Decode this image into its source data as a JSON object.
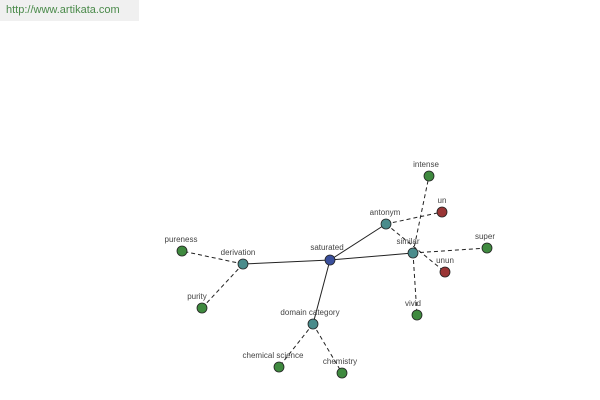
{
  "source_link": "http://www.artikata.com",
  "colors": {
    "center": "#3a4f9c",
    "relation": "#4a8c8c",
    "word": "#3f8a3f",
    "word_red": "#9a3535",
    "edge": "#222222"
  },
  "graph": {
    "center": {
      "id": "saturated",
      "label": "saturated"
    },
    "relations": [
      {
        "id": "antonym",
        "label": "antonym"
      },
      {
        "id": "similar",
        "label": "similar"
      },
      {
        "id": "derivation",
        "label": "derivation"
      },
      {
        "id": "domain_category",
        "label": "domain category"
      }
    ],
    "words": [
      {
        "id": "intense",
        "label": "intense",
        "relation": "similar",
        "tone": "green"
      },
      {
        "id": "un",
        "label": "un",
        "relation": "antonym",
        "tone": "red"
      },
      {
        "id": "super",
        "label": "super",
        "relation": "similar",
        "tone": "green"
      },
      {
        "id": "unun",
        "label": "unun",
        "relation": "antonym",
        "tone": "red"
      },
      {
        "id": "vivid",
        "label": "vivid",
        "relation": "similar",
        "tone": "green"
      },
      {
        "id": "pureness",
        "label": "pureness",
        "relation": "derivation",
        "tone": "green"
      },
      {
        "id": "purity",
        "label": "purity",
        "relation": "derivation",
        "tone": "green"
      },
      {
        "id": "chemical_science",
        "label": "chemical science",
        "relation": "domain_category",
        "tone": "green"
      },
      {
        "id": "chemistry",
        "label": "chemistry",
        "relation": "domain_category",
        "tone": "green"
      }
    ]
  }
}
